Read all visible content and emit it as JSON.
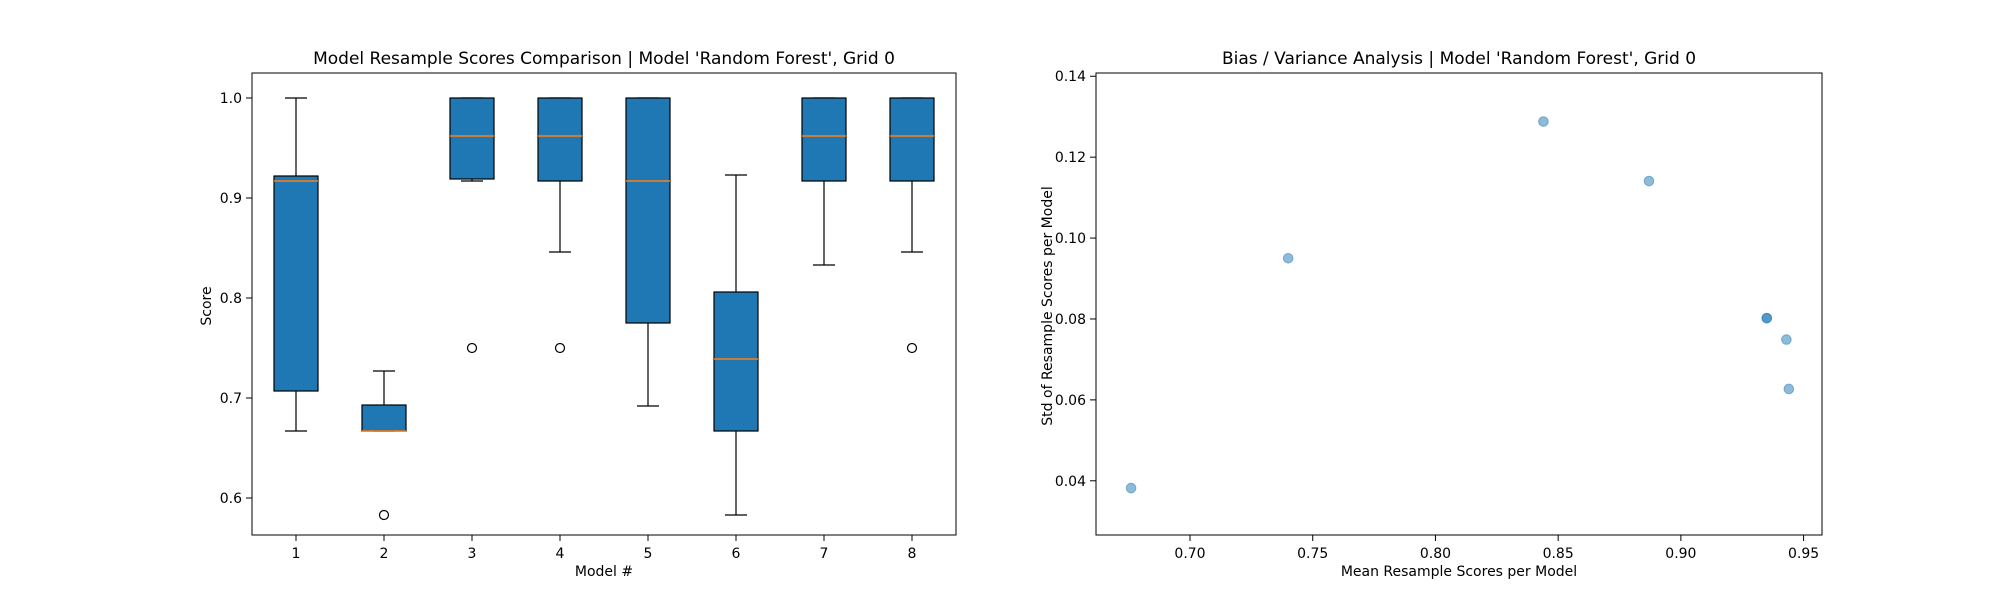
{
  "chart_data": [
    {
      "type": "box",
      "title": "Model Resample Scores Comparison | Model 'Random Forest', Grid 0",
      "xlabel": "Model #",
      "ylabel": "Score",
      "categories": [
        "1",
        "2",
        "3",
        "4",
        "5",
        "6",
        "7",
        "8"
      ],
      "ylim": [
        0.563,
        1.025
      ],
      "yticks": [
        0.6,
        0.7,
        0.8,
        0.9,
        1.0
      ],
      "ytick_labels": [
        "0.6",
        "0.7",
        "0.8",
        "0.9",
        "1.0"
      ],
      "boxes": [
        {
          "label": "1",
          "whisker_low": 0.667,
          "q1": 0.707,
          "median": 0.917,
          "q3": 0.922,
          "whisker_high": 1.0,
          "outliers": []
        },
        {
          "label": "2",
          "whisker_low": 0.667,
          "q1": 0.667,
          "median": 0.667,
          "q3": 0.693,
          "whisker_high": 0.727,
          "outliers": [
            0.583
          ]
        },
        {
          "label": "3",
          "whisker_low": 0.917,
          "q1": 0.919,
          "median": 0.962,
          "q3": 1.0,
          "whisker_high": 1.0,
          "outliers": [
            0.75
          ]
        },
        {
          "label": "4",
          "whisker_low": 0.846,
          "q1": 0.917,
          "median": 0.962,
          "q3": 1.0,
          "whisker_high": 1.0,
          "outliers": [
            0.75
          ]
        },
        {
          "label": "5",
          "whisker_low": 0.692,
          "q1": 0.775,
          "median": 0.917,
          "q3": 1.0,
          "whisker_high": 1.0,
          "outliers": []
        },
        {
          "label": "6",
          "whisker_low": 0.583,
          "q1": 0.667,
          "median": 0.739,
          "q3": 0.806,
          "whisker_high": 0.923,
          "outliers": []
        },
        {
          "label": "7",
          "whisker_low": 0.833,
          "q1": 0.917,
          "median": 0.962,
          "q3": 1.0,
          "whisker_high": 1.0,
          "outliers": []
        },
        {
          "label": "8",
          "whisker_low": 0.846,
          "q1": 0.917,
          "median": 0.962,
          "q3": 1.0,
          "whisker_high": 1.0,
          "outliers": [
            0.75
          ]
        }
      ],
      "box_color": "#1f77b4",
      "median_color": "#ff7f0e",
      "grid": false
    },
    {
      "type": "scatter",
      "title": "Bias / Variance Analysis | Model 'Random Forest', Grid 0",
      "xlabel": "Mean Resample Scores per Model",
      "ylabel": "Std of Resample Scores per Model",
      "xlim": [
        0.6617,
        0.9575
      ],
      "ylim": [
        0.0266,
        0.1408
      ],
      "xticks": [
        0.7,
        0.75,
        0.8,
        0.85,
        0.9,
        0.95
      ],
      "xtick_labels": [
        "0.70",
        "0.75",
        "0.80",
        "0.85",
        "0.90",
        "0.95"
      ],
      "yticks": [
        0.04,
        0.06,
        0.08,
        0.1,
        0.12,
        0.14
      ],
      "ytick_labels": [
        "0.04",
        "0.06",
        "0.08",
        "0.10",
        "0.12",
        "0.14"
      ],
      "points": [
        {
          "x": 0.676,
          "y": 0.0382
        },
        {
          "x": 0.74,
          "y": 0.095
        },
        {
          "x": 0.844,
          "y": 0.1288
        },
        {
          "x": 0.887,
          "y": 0.1141
        },
        {
          "x": 0.935,
          "y": 0.0802
        },
        {
          "x": 0.935,
          "y": 0.0802
        },
        {
          "x": 0.943,
          "y": 0.0749
        },
        {
          "x": 0.944,
          "y": 0.0627
        }
      ],
      "point_color": "#1f77b4",
      "point_alpha": 0.5,
      "grid": false
    }
  ]
}
